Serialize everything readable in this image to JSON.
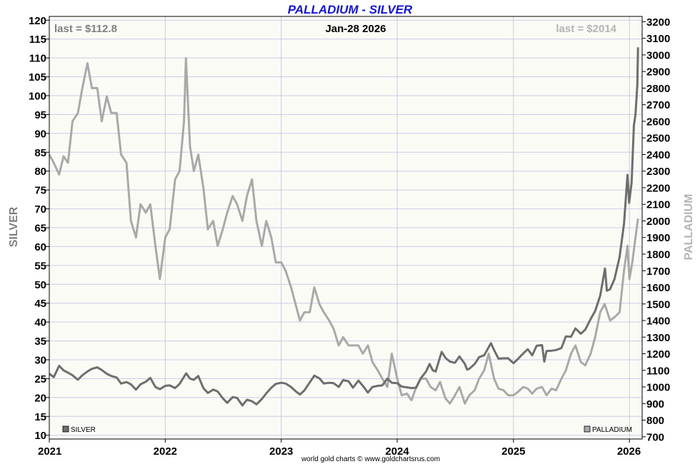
{
  "chart_data": {
    "type": "line",
    "title": "PALLADIUM - SILVER",
    "date_label": "Jan-28  2026",
    "credit": "world gold charts © www.goldchartsrus.com",
    "x_ticks": [
      "2021",
      "2022",
      "2023",
      "2024",
      "2025",
      "2026"
    ],
    "xlim": [
      "2021-01-01",
      "2026-02-10"
    ],
    "grid": true,
    "plot_background": "#fbfbf6",
    "grid_color": "#c8cbe6",
    "left_axis": {
      "label": "SILVER",
      "ylim": [
        9,
        121
      ],
      "ticks": [
        10,
        15,
        20,
        25,
        30,
        35,
        40,
        45,
        50,
        55,
        60,
        65,
        70,
        75,
        80,
        85,
        90,
        95,
        100,
        105,
        110,
        115,
        120
      ],
      "label_color": "#7f7f7f"
    },
    "right_axis": {
      "label": "PALLADIUM",
      "ylim": [
        686.36,
        3231.82
      ],
      "ticks": [
        700,
        800,
        900,
        1000,
        1100,
        1200,
        1300,
        1400,
        1500,
        1600,
        1700,
        1800,
        1900,
        2000,
        2100,
        2200,
        2300,
        2400,
        2500,
        2600,
        2700,
        2800,
        2900,
        3000,
        3100,
        3200
      ],
      "label_color": "#b4b4b4"
    },
    "annotations": {
      "silver_last": "last = $112.8",
      "palladium_last": "last = $2014"
    },
    "series": [
      {
        "name": "SILVER",
        "axis": "left",
        "color": "#6e6e6e",
        "points": [
          [
            "2021-01-01",
            26.3
          ],
          [
            "2021-01-15",
            25.4
          ],
          [
            "2021-02-01",
            28.4
          ],
          [
            "2021-02-15",
            27.2
          ],
          [
            "2021-03-01",
            26.6
          ],
          [
            "2021-03-15",
            25.9
          ],
          [
            "2021-04-01",
            24.7
          ],
          [
            "2021-04-15",
            25.9
          ],
          [
            "2021-05-01",
            26.9
          ],
          [
            "2021-05-15",
            27.6
          ],
          [
            "2021-06-01",
            28.0
          ],
          [
            "2021-06-15",
            27.3
          ],
          [
            "2021-07-01",
            26.3
          ],
          [
            "2021-07-15",
            25.7
          ],
          [
            "2021-08-01",
            25.3
          ],
          [
            "2021-08-15",
            23.7
          ],
          [
            "2021-09-01",
            24.1
          ],
          [
            "2021-09-15",
            23.5
          ],
          [
            "2021-10-01",
            22.1
          ],
          [
            "2021-10-15",
            23.5
          ],
          [
            "2021-11-01",
            24.2
          ],
          [
            "2021-11-15",
            25.2
          ],
          [
            "2021-12-01",
            22.8
          ],
          [
            "2021-12-15",
            22.2
          ],
          [
            "2022-01-01",
            23.1
          ],
          [
            "2022-01-15",
            23.2
          ],
          [
            "2022-02-01",
            22.5
          ],
          [
            "2022-02-15",
            23.6
          ],
          [
            "2022-03-01",
            25.5
          ],
          [
            "2022-03-08",
            26.4
          ],
          [
            "2022-03-20",
            25.0
          ],
          [
            "2022-04-01",
            24.7
          ],
          [
            "2022-04-15",
            25.7
          ],
          [
            "2022-05-01",
            22.5
          ],
          [
            "2022-05-15",
            21.2
          ],
          [
            "2022-06-01",
            22.1
          ],
          [
            "2022-06-15",
            21.6
          ],
          [
            "2022-07-01",
            19.8
          ],
          [
            "2022-07-15",
            18.6
          ],
          [
            "2022-08-01",
            20.1
          ],
          [
            "2022-08-15",
            19.9
          ],
          [
            "2022-09-01",
            17.9
          ],
          [
            "2022-09-15",
            19.4
          ],
          [
            "2022-10-01",
            19.0
          ],
          [
            "2022-10-15",
            18.2
          ],
          [
            "2022-11-01",
            19.6
          ],
          [
            "2022-11-15",
            21.1
          ],
          [
            "2022-12-01",
            22.6
          ],
          [
            "2022-12-15",
            23.6
          ],
          [
            "2023-01-01",
            23.9
          ],
          [
            "2023-01-15",
            23.7
          ],
          [
            "2023-02-01",
            22.8
          ],
          [
            "2023-02-15",
            21.7
          ],
          [
            "2023-03-01",
            20.8
          ],
          [
            "2023-03-15",
            21.9
          ],
          [
            "2023-04-01",
            24.0
          ],
          [
            "2023-04-15",
            25.8
          ],
          [
            "2023-05-01",
            25.1
          ],
          [
            "2023-05-15",
            23.7
          ],
          [
            "2023-06-01",
            23.9
          ],
          [
            "2023-06-15",
            23.8
          ],
          [
            "2023-07-01",
            22.8
          ],
          [
            "2023-07-15",
            24.6
          ],
          [
            "2023-08-01",
            24.3
          ],
          [
            "2023-08-15",
            22.6
          ],
          [
            "2023-09-01",
            24.5
          ],
          [
            "2023-09-15",
            23.1
          ],
          [
            "2023-10-01",
            21.3
          ],
          [
            "2023-10-15",
            22.8
          ],
          [
            "2023-11-01",
            23.1
          ],
          [
            "2023-11-15",
            23.2
          ],
          [
            "2023-12-01",
            25.0
          ],
          [
            "2023-12-15",
            23.9
          ],
          [
            "2024-01-01",
            23.8
          ],
          [
            "2024-01-15",
            22.9
          ],
          [
            "2024-02-01",
            22.7
          ],
          [
            "2024-02-15",
            22.5
          ],
          [
            "2024-03-01",
            22.6
          ],
          [
            "2024-03-15",
            25.1
          ],
          [
            "2024-04-01",
            26.9
          ],
          [
            "2024-04-12",
            28.9
          ],
          [
            "2024-04-22",
            27.2
          ],
          [
            "2024-05-01",
            26.9
          ],
          [
            "2024-05-20",
            32.1
          ],
          [
            "2024-06-01",
            30.5
          ],
          [
            "2024-06-15",
            29.5
          ],
          [
            "2024-07-01",
            29.2
          ],
          [
            "2024-07-15",
            30.9
          ],
          [
            "2024-08-01",
            28.9
          ],
          [
            "2024-08-08",
            27.4
          ],
          [
            "2024-08-15",
            27.6
          ],
          [
            "2024-09-01",
            28.9
          ],
          [
            "2024-09-15",
            30.7
          ],
          [
            "2024-10-01",
            31.2
          ],
          [
            "2024-10-22",
            34.4
          ],
          [
            "2024-11-01",
            32.6
          ],
          [
            "2024-11-15",
            30.3
          ],
          [
            "2024-12-01",
            30.4
          ],
          [
            "2024-12-15",
            30.4
          ],
          [
            "2025-01-01",
            29.1
          ],
          [
            "2025-01-15",
            30.2
          ],
          [
            "2025-02-01",
            31.7
          ],
          [
            "2025-02-15",
            32.8
          ],
          [
            "2025-03-01",
            31.2
          ],
          [
            "2025-03-15",
            33.7
          ],
          [
            "2025-04-01",
            33.9
          ],
          [
            "2025-04-08",
            29.5
          ],
          [
            "2025-04-15",
            32.3
          ],
          [
            "2025-05-01",
            32.4
          ],
          [
            "2025-05-15",
            32.6
          ],
          [
            "2025-06-01",
            33.1
          ],
          [
            "2025-06-15",
            36.2
          ],
          [
            "2025-07-01",
            36.1
          ],
          [
            "2025-07-15",
            38.3
          ],
          [
            "2025-08-01",
            36.9
          ],
          [
            "2025-08-15",
            38.0
          ],
          [
            "2025-09-01",
            40.8
          ],
          [
            "2025-09-15",
            42.9
          ],
          [
            "2025-10-01",
            47.0
          ],
          [
            "2025-10-16",
            54.2
          ],
          [
            "2025-10-22",
            48.3
          ],
          [
            "2025-11-01",
            48.7
          ],
          [
            "2025-11-15",
            51.4
          ],
          [
            "2025-12-01",
            57.2
          ],
          [
            "2025-12-15",
            66.0
          ],
          [
            "2025-12-26",
            79.0
          ],
          [
            "2025-12-31",
            71.6
          ],
          [
            "2026-01-08",
            77.0
          ],
          [
            "2026-01-15",
            92.0
          ],
          [
            "2026-01-20",
            95.0
          ],
          [
            "2026-01-26",
            103.0
          ],
          [
            "2026-01-28",
            112.8
          ]
        ]
      },
      {
        "name": "PALLADIUM",
        "axis": "right",
        "color": "#a9a9a9",
        "points": [
          [
            "2021-01-01",
            2400
          ],
          [
            "2021-01-15",
            2350
          ],
          [
            "2021-02-01",
            2280
          ],
          [
            "2021-02-15",
            2390
          ],
          [
            "2021-03-01",
            2350
          ],
          [
            "2021-03-15",
            2600
          ],
          [
            "2021-04-01",
            2650
          ],
          [
            "2021-04-15",
            2800
          ],
          [
            "2021-05-01",
            2950
          ],
          [
            "2021-05-15",
            2800
          ],
          [
            "2021-06-01",
            2800
          ],
          [
            "2021-06-15",
            2600
          ],
          [
            "2021-07-01",
            2750
          ],
          [
            "2021-07-15",
            2650
          ],
          [
            "2021-08-01",
            2650
          ],
          [
            "2021-08-15",
            2400
          ],
          [
            "2021-09-01",
            2350
          ],
          [
            "2021-09-15",
            2000
          ],
          [
            "2021-10-01",
            1900
          ],
          [
            "2021-10-15",
            2100
          ],
          [
            "2021-11-01",
            2050
          ],
          [
            "2021-11-15",
            2100
          ],
          [
            "2021-12-01",
            1850
          ],
          [
            "2021-12-15",
            1650
          ],
          [
            "2022-01-01",
            1900
          ],
          [
            "2022-01-15",
            1950
          ],
          [
            "2022-02-01",
            2250
          ],
          [
            "2022-02-15",
            2300
          ],
          [
            "2022-03-01",
            2600
          ],
          [
            "2022-03-07",
            2980
          ],
          [
            "2022-03-20",
            2450
          ],
          [
            "2022-04-01",
            2300
          ],
          [
            "2022-04-15",
            2400
          ],
          [
            "2022-05-01",
            2200
          ],
          [
            "2022-05-15",
            1950
          ],
          [
            "2022-06-01",
            2000
          ],
          [
            "2022-06-15",
            1850
          ],
          [
            "2022-07-01",
            1950
          ],
          [
            "2022-07-15",
            2050
          ],
          [
            "2022-08-01",
            2150
          ],
          [
            "2022-08-15",
            2100
          ],
          [
            "2022-09-01",
            2000
          ],
          [
            "2022-09-15",
            2150
          ],
          [
            "2022-10-01",
            2250
          ],
          [
            "2022-10-15",
            2000
          ],
          [
            "2022-11-01",
            1850
          ],
          [
            "2022-11-15",
            2000
          ],
          [
            "2022-12-01",
            1900
          ],
          [
            "2022-12-15",
            1750
          ],
          [
            "2023-01-01",
            1750
          ],
          [
            "2023-01-15",
            1700
          ],
          [
            "2023-02-01",
            1600
          ],
          [
            "2023-02-15",
            1500
          ],
          [
            "2023-03-01",
            1400
          ],
          [
            "2023-03-15",
            1450
          ],
          [
            "2023-04-01",
            1450
          ],
          [
            "2023-04-15",
            1600
          ],
          [
            "2023-05-01",
            1500
          ],
          [
            "2023-05-15",
            1450
          ],
          [
            "2023-06-01",
            1400
          ],
          [
            "2023-06-15",
            1350
          ],
          [
            "2023-07-01",
            1250
          ],
          [
            "2023-07-15",
            1300
          ],
          [
            "2023-08-01",
            1250
          ],
          [
            "2023-08-15",
            1250
          ],
          [
            "2023-09-01",
            1250
          ],
          [
            "2023-09-15",
            1200
          ],
          [
            "2023-10-01",
            1250
          ],
          [
            "2023-10-15",
            1150
          ],
          [
            "2023-11-01",
            1100
          ],
          [
            "2023-11-15",
            1050
          ],
          [
            "2023-12-01",
            1000
          ],
          [
            "2023-12-15",
            1200
          ],
          [
            "2024-01-01",
            1050
          ],
          [
            "2024-01-15",
            950
          ],
          [
            "2024-02-01",
            960
          ],
          [
            "2024-02-15",
            920
          ],
          [
            "2024-03-01",
            1000
          ],
          [
            "2024-03-15",
            1050
          ],
          [
            "2024-04-01",
            1050
          ],
          [
            "2024-04-15",
            1000
          ],
          [
            "2024-05-01",
            980
          ],
          [
            "2024-05-15",
            1030
          ],
          [
            "2024-06-01",
            930
          ],
          [
            "2024-06-15",
            900
          ],
          [
            "2024-07-01",
            950
          ],
          [
            "2024-07-15",
            1000
          ],
          [
            "2024-08-01",
            900
          ],
          [
            "2024-08-15",
            950
          ],
          [
            "2024-09-01",
            980
          ],
          [
            "2024-09-15",
            1050
          ],
          [
            "2024-10-01",
            1100
          ],
          [
            "2024-10-15",
            1200
          ],
          [
            "2024-11-01",
            1050
          ],
          [
            "2024-11-15",
            990
          ],
          [
            "2024-12-01",
            980
          ],
          [
            "2024-12-15",
            950
          ],
          [
            "2025-01-01",
            950
          ],
          [
            "2025-01-15",
            970
          ],
          [
            "2025-02-01",
            1000
          ],
          [
            "2025-02-15",
            990
          ],
          [
            "2025-03-01",
            960
          ],
          [
            "2025-03-15",
            990
          ],
          [
            "2025-04-01",
            1000
          ],
          [
            "2025-04-15",
            950
          ],
          [
            "2025-05-01",
            990
          ],
          [
            "2025-05-15",
            980
          ],
          [
            "2025-06-01",
            1050
          ],
          [
            "2025-06-15",
            1100
          ],
          [
            "2025-07-01",
            1200
          ],
          [
            "2025-07-15",
            1250
          ],
          [
            "2025-08-01",
            1150
          ],
          [
            "2025-08-15",
            1130
          ],
          [
            "2025-09-01",
            1200
          ],
          [
            "2025-09-15",
            1300
          ],
          [
            "2025-10-01",
            1450
          ],
          [
            "2025-10-15",
            1500
          ],
          [
            "2025-11-01",
            1400
          ],
          [
            "2025-11-15",
            1420
          ],
          [
            "2025-12-01",
            1450
          ],
          [
            "2025-12-15",
            1700
          ],
          [
            "2025-12-26",
            1850
          ],
          [
            "2026-01-01",
            1650
          ],
          [
            "2026-01-10",
            1750
          ],
          [
            "2026-01-20",
            1900
          ],
          [
            "2026-01-28",
            2014
          ]
        ]
      }
    ]
  }
}
